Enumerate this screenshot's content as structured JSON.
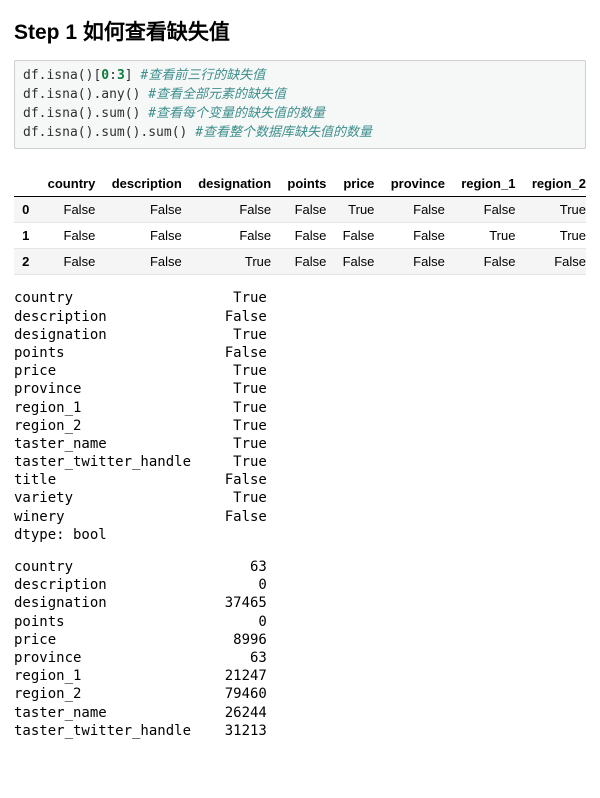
{
  "heading": "Step 1 如何查看缺失值",
  "code": {
    "lines": [
      {
        "segments": [
          {
            "t": "df.isna()[",
            "c": "tok-default"
          },
          {
            "t": "0",
            "c": "tok-num"
          },
          {
            "t": ":",
            "c": "tok-default"
          },
          {
            "t": "3",
            "c": "tok-num"
          },
          {
            "t": "] ",
            "c": "tok-default"
          },
          {
            "t": "#查看前三行的缺失值",
            "c": "tok-comment"
          }
        ]
      },
      {
        "segments": [
          {
            "t": "df.isna().any() ",
            "c": "tok-default"
          },
          {
            "t": "#查看全部元素的缺失值",
            "c": "tok-comment"
          }
        ]
      },
      {
        "segments": [
          {
            "t": "df.isna().sum() ",
            "c": "tok-default"
          },
          {
            "t": "#查看每个变量的缺失值的数量",
            "c": "tok-comment"
          }
        ]
      },
      {
        "segments": [
          {
            "t": "df.isna().sum().sum() ",
            "c": "tok-default"
          },
          {
            "t": "#查看整个数据库缺失值的数量",
            "c": "tok-comment"
          }
        ]
      }
    ]
  },
  "table": {
    "type": "table",
    "columns": [
      "country",
      "description",
      "designation",
      "points",
      "price",
      "province",
      "region_1",
      "region_2"
    ],
    "index": [
      "0",
      "1",
      "2"
    ],
    "rows": [
      [
        "False",
        "False",
        "False",
        "False",
        "True",
        "False",
        "False",
        "True"
      ],
      [
        "False",
        "False",
        "False",
        "False",
        "False",
        "False",
        "True",
        "True"
      ],
      [
        "False",
        "False",
        "True",
        "False",
        "False",
        "False",
        "False",
        "False"
      ]
    ],
    "header_border_color": "#000000",
    "row_stripe_color": "#f5f5f5",
    "text_color": "#000000",
    "font_size": 13
  },
  "any_series": {
    "label_width": 24,
    "value_width": 6,
    "rows": [
      [
        "country",
        "True"
      ],
      [
        "description",
        "False"
      ],
      [
        "designation",
        "True"
      ],
      [
        "points",
        "False"
      ],
      [
        "price",
        "True"
      ],
      [
        "province",
        "True"
      ],
      [
        "region_1",
        "True"
      ],
      [
        "region_2",
        "True"
      ],
      [
        "taster_name",
        "True"
      ],
      [
        "taster_twitter_handle",
        "True"
      ],
      [
        "title",
        "False"
      ],
      [
        "variety",
        "True"
      ],
      [
        "winery",
        "False"
      ]
    ],
    "dtype_line": "dtype: bool"
  },
  "sum_series": {
    "label_width": 24,
    "value_width": 6,
    "rows": [
      [
        "country",
        "63"
      ],
      [
        "description",
        "0"
      ],
      [
        "designation",
        "37465"
      ],
      [
        "points",
        "0"
      ],
      [
        "price",
        "8996"
      ],
      [
        "province",
        "63"
      ],
      [
        "region_1",
        "21247"
      ],
      [
        "region_2",
        "79460"
      ],
      [
        "taster_name",
        "26244"
      ],
      [
        "taster_twitter_handle",
        "31213"
      ]
    ]
  },
  "colors": {
    "background": "#ffffff",
    "code_bg": "#f6f7f7",
    "code_border": "#cfcfcf",
    "comment": "#3d8f8c",
    "number": "#0b7d3d",
    "text": "#000000"
  }
}
